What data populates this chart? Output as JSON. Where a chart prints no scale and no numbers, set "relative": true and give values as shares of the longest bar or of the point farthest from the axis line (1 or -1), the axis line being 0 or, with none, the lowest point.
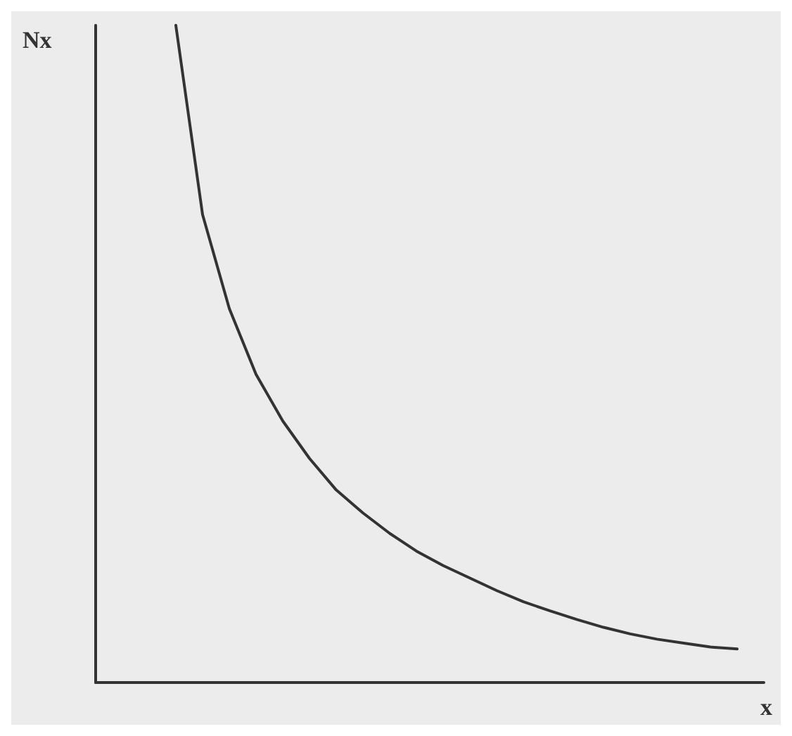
{
  "chart_data": {
    "type": "line",
    "relative": true,
    "xlabel": "x",
    "ylabel": "Nx",
    "marker": "none",
    "line_style": "solid",
    "grid": false,
    "categories": [
      null,
      null,
      null,
      null,
      null,
      null,
      null,
      null,
      null,
      null,
      null,
      null,
      null,
      null,
      null,
      null,
      null,
      null,
      null,
      null,
      null,
      null,
      null,
      null,
      null,
      null
    ],
    "series": [
      {
        "color": "#333333",
        "values": [
          null,
          null,
          null,
          1,
          0.712,
          0.569,
          0.469,
          0.398,
          0.341,
          0.293,
          0.258,
          0.227,
          0.2,
          0.178,
          0.159,
          0.14,
          0.123,
          0.109,
          0.096,
          0.084,
          0.074,
          0.066,
          0.06,
          0.054,
          0.051,
          null
        ]
      }
    ]
  }
}
